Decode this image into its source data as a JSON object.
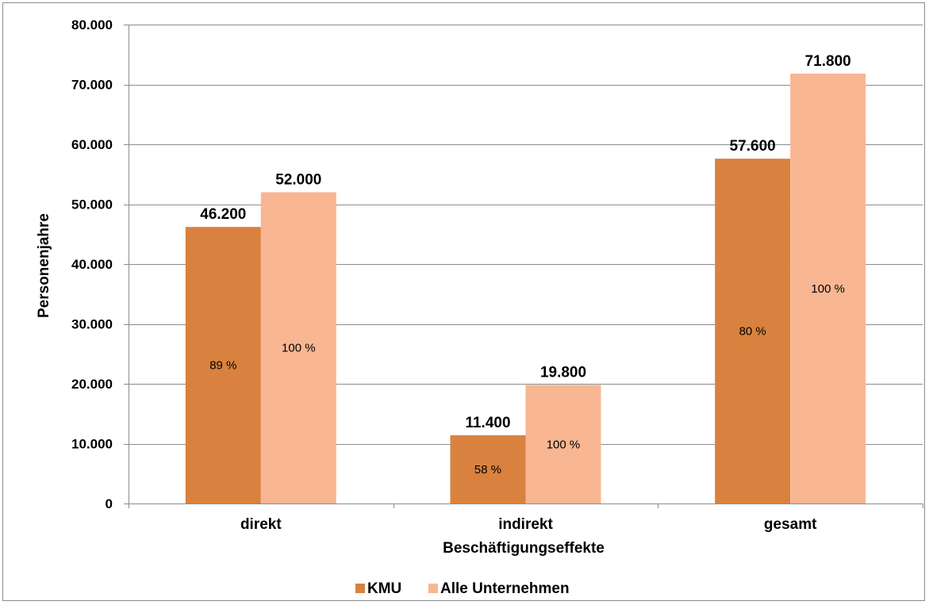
{
  "chart_data": {
    "type": "bar",
    "title": "",
    "xlabel": "Beschäftigungseffekte",
    "ylabel": "Personenjahre",
    "ylim": [
      0,
      80000
    ],
    "yticks": [
      0,
      10000,
      20000,
      30000,
      40000,
      50000,
      60000,
      70000,
      80000
    ],
    "ytick_labels": [
      "0",
      "10.000",
      "20.000",
      "30.000",
      "40.000",
      "50.000",
      "60.000",
      "70.000",
      "80.000"
    ],
    "categories": [
      "direkt",
      "indirekt",
      "gesamt"
    ],
    "grid": true,
    "legend_position": "bottom",
    "series": [
      {
        "name": "KMU",
        "color": "#d9823f",
        "values": [
          46200,
          11400,
          57600
        ],
        "value_labels": [
          "46.200",
          "11.400",
          "57.600"
        ],
        "percent_labels": [
          "89 %",
          "58 %",
          "80 %"
        ]
      },
      {
        "name": "Alle Unternehmen",
        "color": "#f8b693",
        "values": [
          52000,
          19800,
          71800
        ],
        "value_labels": [
          "52.000",
          "19.800",
          "71.800"
        ],
        "percent_labels": [
          "100 %",
          "100 %",
          "100 %"
        ]
      }
    ]
  }
}
